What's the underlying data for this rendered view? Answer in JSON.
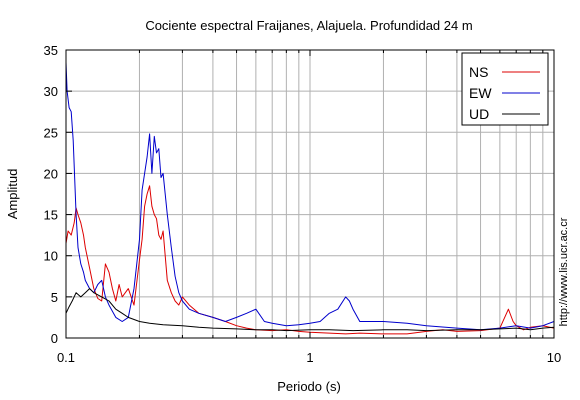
{
  "chart_data": {
    "type": "line",
    "title": "Cociente espectral Fraijanes, Alajuela. Profundidad 24 m",
    "xlabel": "Periodo (s)",
    "ylabel": "Amplitud",
    "xscale": "log",
    "xlim": [
      0.1,
      10
    ],
    "ylim": [
      0,
      35
    ],
    "x_ticks": [
      {
        "value": 0.1,
        "label": "0.1"
      },
      {
        "value": 1,
        "label": "1"
      },
      {
        "value": 10,
        "label": "10"
      }
    ],
    "y_ticks": [
      {
        "value": 0,
        "label": "0"
      },
      {
        "value": 5,
        "label": "5"
      },
      {
        "value": 10,
        "label": "10"
      },
      {
        "value": 15,
        "label": "15"
      },
      {
        "value": 20,
        "label": "20"
      },
      {
        "value": 25,
        "label": "25"
      },
      {
        "value": 30,
        "label": "30"
      },
      {
        "value": 35,
        "label": "35"
      }
    ],
    "grid": true,
    "legend_position": "top-right",
    "series": [
      {
        "name": "NS",
        "color": "#dd0000",
        "x": [
          0.1,
          0.102,
          0.105,
          0.108,
          0.11,
          0.112,
          0.115,
          0.118,
          0.12,
          0.125,
          0.13,
          0.135,
          0.14,
          0.145,
          0.15,
          0.155,
          0.16,
          0.165,
          0.17,
          0.175,
          0.18,
          0.19,
          0.2,
          0.205,
          0.21,
          0.215,
          0.22,
          0.225,
          0.23,
          0.235,
          0.24,
          0.245,
          0.25,
          0.255,
          0.26,
          0.27,
          0.28,
          0.29,
          0.3,
          0.32,
          0.35,
          0.4,
          0.45,
          0.5,
          0.55,
          0.6,
          0.7,
          0.8,
          0.9,
          1.0,
          1.2,
          1.4,
          1.6,
          2.0,
          2.5,
          3.0,
          3.5,
          4.0,
          5.0,
          6.0,
          6.5,
          6.8,
          7.0,
          7.5,
          8.0,
          9.0,
          10.0
        ],
        "y": [
          11.5,
          13.0,
          12.5,
          14.0,
          15.8,
          15.0,
          14.0,
          12.5,
          11.0,
          8.5,
          6.0,
          4.8,
          4.5,
          9.0,
          8.0,
          6.0,
          4.5,
          6.5,
          5.0,
          5.5,
          6.0,
          4.0,
          9.5,
          12.0,
          16.0,
          17.5,
          18.5,
          16.0,
          15.0,
          14.5,
          12.5,
          12.0,
          13.0,
          10.0,
          7.0,
          5.5,
          4.5,
          4.0,
          5.0,
          4.0,
          3.0,
          2.5,
          2.0,
          1.5,
          1.2,
          1.0,
          0.9,
          1.0,
          0.8,
          0.7,
          0.6,
          0.5,
          0.6,
          0.5,
          0.5,
          0.8,
          1.0,
          0.8,
          0.9,
          1.2,
          3.5,
          2.0,
          1.5,
          1.0,
          1.3,
          1.5,
          1.2
        ]
      },
      {
        "name": "EW",
        "color": "#0000cc",
        "x": [
          0.1,
          0.101,
          0.103,
          0.105,
          0.107,
          0.11,
          0.112,
          0.115,
          0.118,
          0.12,
          0.125,
          0.13,
          0.135,
          0.14,
          0.145,
          0.15,
          0.16,
          0.17,
          0.18,
          0.19,
          0.2,
          0.205,
          0.21,
          0.215,
          0.22,
          0.225,
          0.23,
          0.235,
          0.24,
          0.245,
          0.25,
          0.26,
          0.27,
          0.28,
          0.29,
          0.3,
          0.32,
          0.35,
          0.4,
          0.45,
          0.5,
          0.55,
          0.6,
          0.65,
          0.7,
          0.8,
          0.9,
          1.0,
          1.1,
          1.2,
          1.3,
          1.4,
          1.45,
          1.5,
          1.6,
          1.8,
          2.0,
          2.5,
          3.0,
          4.0,
          5.0,
          6.0,
          7.0,
          8.0,
          9.0,
          10.0
        ],
        "y": [
          33.5,
          30.0,
          28.0,
          27.5,
          24.0,
          15.0,
          11.0,
          9.0,
          8.0,
          7.0,
          6.0,
          5.5,
          6.5,
          7.0,
          5.0,
          4.0,
          2.5,
          2.0,
          2.5,
          6.0,
          12.0,
          18.0,
          20.0,
          22.0,
          24.8,
          20.0,
          24.5,
          22.5,
          23.0,
          19.5,
          20.0,
          15.0,
          11.0,
          7.5,
          5.5,
          4.5,
          3.5,
          3.0,
          2.5,
          2.0,
          2.5,
          3.0,
          3.5,
          2.0,
          1.8,
          1.5,
          1.6,
          1.8,
          2.0,
          3.0,
          3.5,
          5.0,
          4.5,
          3.5,
          2.0,
          2.0,
          2.0,
          1.8,
          1.5,
          1.2,
          1.0,
          1.2,
          1.5,
          1.2,
          1.5,
          2.0
        ]
      },
      {
        "name": "UD",
        "color": "#000000",
        "x": [
          0.1,
          0.103,
          0.106,
          0.11,
          0.115,
          0.12,
          0.125,
          0.13,
          0.14,
          0.15,
          0.16,
          0.17,
          0.18,
          0.2,
          0.22,
          0.25,
          0.3,
          0.35,
          0.4,
          0.5,
          0.6,
          0.7,
          0.8,
          1.0,
          1.2,
          1.5,
          2.0,
          2.5,
          3.0,
          4.0,
          5.0,
          6.0,
          7.0,
          8.0,
          9.0,
          10.0
        ],
        "y": [
          3.0,
          3.8,
          4.5,
          5.5,
          5.0,
          5.5,
          6.0,
          5.5,
          5.0,
          4.5,
          3.5,
          3.0,
          2.5,
          2.0,
          1.8,
          1.6,
          1.5,
          1.3,
          1.2,
          1.1,
          1.0,
          1.0,
          0.9,
          1.0,
          1.0,
          0.9,
          1.0,
          1.0,
          0.9,
          1.0,
          1.0,
          1.1,
          1.2,
          1.0,
          1.2,
          1.3
        ]
      }
    ]
  },
  "watermark": "http://www.lis.ucr.ac.cr"
}
